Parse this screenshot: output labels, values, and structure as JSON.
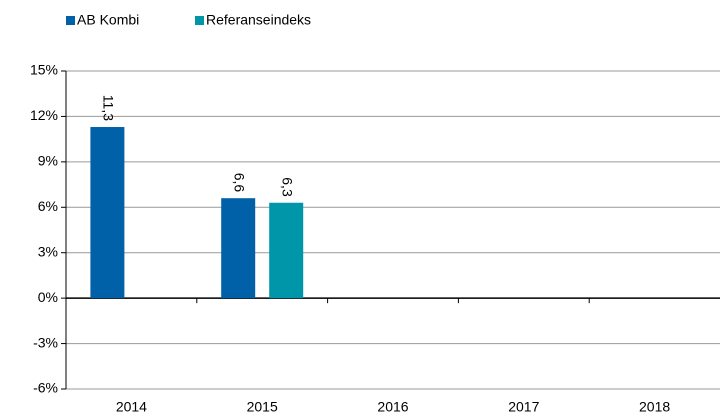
{
  "chart_data": {
    "type": "bar",
    "categories": [
      "2014",
      "2015",
      "2016",
      "2017",
      "2018"
    ],
    "series": [
      {
        "name": "AB Kombi",
        "color": "#0060a8",
        "values": [
          11.3,
          6.6,
          null,
          null,
          null
        ],
        "value_labels": [
          "11,3",
          "6,6",
          null,
          null,
          null
        ]
      },
      {
        "name": "Referanseindeks",
        "color": "#0096a9",
        "values": [
          null,
          6.3,
          null,
          null,
          null
        ],
        "value_labels": [
          null,
          "6,3",
          null,
          null,
          null
        ]
      }
    ],
    "ylim": [
      -6,
      15
    ],
    "yticks": [
      {
        "value": -6,
        "label": "-6%"
      },
      {
        "value": -3,
        "label": "-3%"
      },
      {
        "value": 0,
        "label": "0%"
      },
      {
        "value": 3,
        "label": "3%"
      },
      {
        "value": 6,
        "label": "6%"
      },
      {
        "value": 9,
        "label": "9%"
      },
      {
        "value": 12,
        "label": "12%"
      },
      {
        "value": 15,
        "label": "15%"
      }
    ],
    "grid": true
  }
}
